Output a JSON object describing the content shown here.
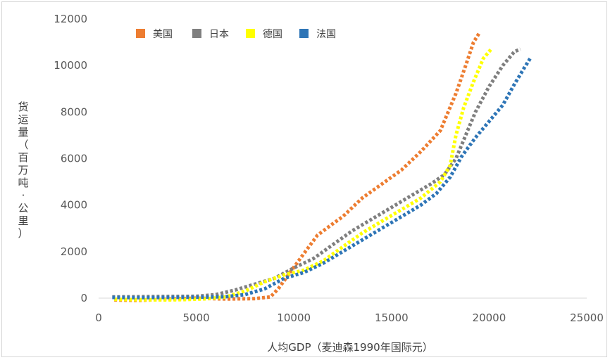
{
  "chart_data": {
    "type": "line",
    "title": "",
    "xlabel": "人均GDP（麦迪森1990年国际元）",
    "ylabel": "货运量（百万吨·公里）",
    "xlim": [
      0,
      25000
    ],
    "ylim": [
      0,
      12000
    ],
    "x_ticks": [
      "0",
      "5000",
      "10000",
      "15000",
      "20000",
      "25000"
    ],
    "y_ticks": [
      "0",
      "2000",
      "4000",
      "6000",
      "8000",
      "10000",
      "12000"
    ],
    "grid": false,
    "legend_position": "top-left",
    "series": [
      {
        "name": "美国",
        "color": "#ED7D31",
        "points": [
          [
            800,
            -80
          ],
          [
            2000,
            -100
          ],
          [
            3500,
            -50
          ],
          [
            5000,
            0
          ],
          [
            6500,
            -40
          ],
          [
            8000,
            -20
          ],
          [
            8800,
            50
          ],
          [
            9200,
            400
          ],
          [
            9800,
            1100
          ],
          [
            10500,
            1900
          ],
          [
            11200,
            2700
          ],
          [
            12000,
            3200
          ],
          [
            12500,
            3500
          ],
          [
            13500,
            4300
          ],
          [
            14500,
            4900
          ],
          [
            15500,
            5500
          ],
          [
            16500,
            6300
          ],
          [
            17500,
            7200
          ],
          [
            18300,
            8800
          ],
          [
            18800,
            10000
          ],
          [
            19200,
            11000
          ],
          [
            19500,
            11400
          ]
        ]
      },
      {
        "name": "日本",
        "color": "#7F7F7F",
        "points": [
          [
            700,
            50
          ],
          [
            2000,
            60
          ],
          [
            3500,
            70
          ],
          [
            5000,
            80
          ],
          [
            6000,
            150
          ],
          [
            7000,
            350
          ],
          [
            8000,
            600
          ],
          [
            9000,
            850
          ],
          [
            10000,
            1300
          ],
          [
            11000,
            1700
          ],
          [
            12000,
            2300
          ],
          [
            13000,
            2900
          ],
          [
            14000,
            3400
          ],
          [
            15000,
            3900
          ],
          [
            16000,
            4400
          ],
          [
            17000,
            4900
          ],
          [
            17700,
            5300
          ],
          [
            18300,
            6000
          ],
          [
            18800,
            7000
          ],
          [
            19300,
            8000
          ],
          [
            20000,
            9100
          ],
          [
            20700,
            10000
          ],
          [
            21300,
            10600
          ],
          [
            21600,
            10700
          ]
        ]
      },
      {
        "name": "德国",
        "color": "#FFFF00",
        "points": [
          [
            800,
            -50
          ],
          [
            2000,
            -70
          ],
          [
            3500,
            -80
          ],
          [
            4500,
            -60
          ],
          [
            5500,
            -30
          ],
          [
            6500,
            50
          ],
          [
            7500,
            300
          ],
          [
            8500,
            700
          ],
          [
            9500,
            1000
          ],
          [
            10500,
            1200
          ],
          [
            11500,
            1600
          ],
          [
            12500,
            2200
          ],
          [
            13500,
            2800
          ],
          [
            14500,
            3300
          ],
          [
            15500,
            3800
          ],
          [
            16500,
            4300
          ],
          [
            17500,
            5000
          ],
          [
            18000,
            5700
          ],
          [
            18300,
            7000
          ],
          [
            18700,
            8200
          ],
          [
            19200,
            9300
          ],
          [
            19700,
            10300
          ],
          [
            20100,
            10700
          ]
        ]
      },
      {
        "name": "法国",
        "color": "#2E75B6",
        "points": [
          [
            700,
            30
          ],
          [
            2000,
            20
          ],
          [
            3500,
            30
          ],
          [
            5000,
            40
          ],
          [
            6500,
            60
          ],
          [
            7500,
            150
          ],
          [
            8500,
            400
          ],
          [
            9500,
            850
          ],
          [
            10500,
            1100
          ],
          [
            11500,
            1500
          ],
          [
            12500,
            2000
          ],
          [
            13500,
            2500
          ],
          [
            14500,
            3000
          ],
          [
            15500,
            3500
          ],
          [
            16500,
            4000
          ],
          [
            17300,
            4500
          ],
          [
            18000,
            5200
          ],
          [
            18600,
            6100
          ],
          [
            19300,
            6900
          ],
          [
            20000,
            7600
          ],
          [
            20700,
            8300
          ],
          [
            21300,
            9200
          ],
          [
            21800,
            9900
          ],
          [
            22100,
            10300
          ]
        ]
      }
    ]
  }
}
